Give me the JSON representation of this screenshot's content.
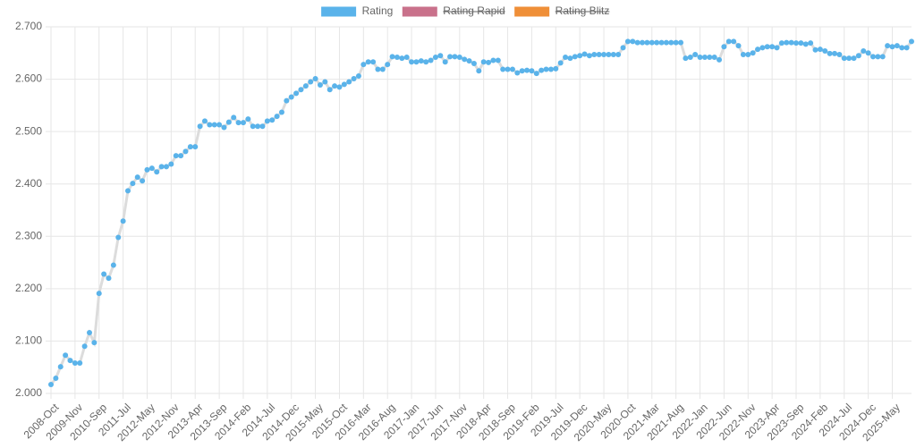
{
  "chart_data": {
    "type": "line",
    "categories": [
      "2008-Oct",
      null,
      null,
      null,
      null,
      "2009-Nov",
      null,
      null,
      null,
      null,
      "2010-Sep",
      null,
      null,
      null,
      null,
      "2011-Jul",
      null,
      null,
      null,
      null,
      "2012-May",
      null,
      null,
      null,
      null,
      "2012-Nov",
      null,
      null,
      null,
      null,
      "2013-Apr",
      null,
      null,
      null,
      null,
      "2013-Sep",
      null,
      null,
      null,
      null,
      "2014-Feb",
      null,
      null,
      null,
      null,
      "2014-Jul",
      null,
      null,
      null,
      null,
      "2014-Dec",
      null,
      null,
      null,
      null,
      "2015-May",
      null,
      null,
      null,
      null,
      "2015-Oct",
      null,
      null,
      null,
      null,
      "2016-Mar",
      null,
      null,
      null,
      null,
      "2016-Aug",
      null,
      null,
      null,
      null,
      "2017-Jan",
      null,
      null,
      null,
      null,
      "2017-Jun",
      null,
      null,
      null,
      null,
      "2017-Nov",
      null,
      null,
      null,
      null,
      "2018-Apr",
      null,
      null,
      null,
      null,
      "2018-Sep",
      null,
      null,
      null,
      null,
      "2019-Feb",
      null,
      null,
      null,
      null,
      "2019-Jul",
      null,
      null,
      null,
      null,
      "2019-Dec",
      null,
      null,
      null,
      null,
      "2020-May",
      null,
      null,
      null,
      null,
      "2020-Oct",
      null,
      null,
      null,
      null,
      "2021-Mar",
      null,
      null,
      null,
      null,
      "2021-Aug",
      null,
      null,
      null,
      null,
      "2022-Jan",
      null,
      null,
      null,
      null,
      "2022-Jun",
      null,
      null,
      null,
      null,
      "2022-Nov",
      null,
      null,
      null,
      null,
      "2023-Apr",
      null,
      null,
      null,
      null,
      "2023-Sep",
      null,
      null,
      null,
      null,
      "2024-Feb",
      null,
      null,
      null,
      null,
      "2024-Jul",
      null,
      null,
      null,
      null,
      "2024-Dec",
      null,
      null,
      null,
      null,
      "2025-May",
      null,
      null,
      null,
      null
    ],
    "series": [
      {
        "name": "Rating",
        "color": "#5ab3ea",
        "line_color": "#dcdcdc",
        "hidden": false,
        "values": [
          2017,
          2029,
          2051,
          2073,
          2063,
          2058,
          2058,
          2090,
          2116,
          2097,
          2191,
          2228,
          2220,
          2245,
          2298,
          2329,
          2387,
          2401,
          2413,
          2406,
          2427,
          2430,
          2423,
          2433,
          2433,
          2438,
          2454,
          2454,
          2462,
          2471,
          2471,
          2510,
          2520,
          2513,
          2513,
          2513,
          2508,
          2518,
          2527,
          2517,
          2517,
          2524,
          2510,
          2510,
          2510,
          2520,
          2522,
          2529,
          2537,
          2559,
          2566,
          2573,
          2580,
          2587,
          2595,
          2601,
          2589,
          2595,
          2580,
          2587,
          2585,
          2590,
          2595,
          2601,
          2606,
          2628,
          2633,
          2633,
          2619,
          2619,
          2628,
          2643,
          2642,
          2640,
          2642,
          2633,
          2633,
          2635,
          2633,
          2636,
          2642,
          2645,
          2633,
          2643,
          2643,
          2642,
          2638,
          2635,
          2630,
          2616,
          2633,
          2632,
          2636,
          2636,
          2619,
          2619,
          2619,
          2612,
          2616,
          2617,
          2616,
          2611,
          2617,
          2619,
          2619,
          2620,
          2631,
          2642,
          2640,
          2643,
          2645,
          2648,
          2645,
          2647,
          2647,
          2647,
          2647,
          2647,
          2647,
          2660,
          2672,
          2672,
          2670,
          2670,
          2670,
          2670,
          2670,
          2670,
          2670,
          2670,
          2670,
          2670,
          2640,
          2642,
          2647,
          2642,
          2642,
          2642,
          2642,
          2637,
          2662,
          2672,
          2672,
          2664,
          2647,
          2647,
          2650,
          2657,
          2660,
          2662,
          2662,
          2660,
          2669,
          2670,
          2670,
          2669,
          2669,
          2667,
          2669,
          2656,
          2657,
          2654,
          2649,
          2649,
          2647,
          2640,
          2640,
          2640,
          2645,
          2654,
          2650,
          2643,
          2643,
          2643,
          2664,
          2662,
          2664,
          2660,
          2660,
          2672
        ]
      },
      {
        "name": "Rating Rapid",
        "color": "#c9718b",
        "hidden": true
      },
      {
        "name": "Rating Blitz",
        "color": "#ef8f38",
        "hidden": true
      }
    ],
    "ylim": [
      2000,
      2700
    ],
    "yticks": [
      {
        "value": 2000,
        "label": "2.000"
      },
      {
        "value": 2100,
        "label": "2.100"
      },
      {
        "value": 2200,
        "label": "2.200"
      },
      {
        "value": 2300,
        "label": "2.300"
      },
      {
        "value": 2400,
        "label": "2.400"
      },
      {
        "value": 2500,
        "label": "2.500"
      },
      {
        "value": 2600,
        "label": "2.600"
      },
      {
        "value": 2700,
        "label": "2.700"
      }
    ],
    "grid": true,
    "legend": "top"
  }
}
